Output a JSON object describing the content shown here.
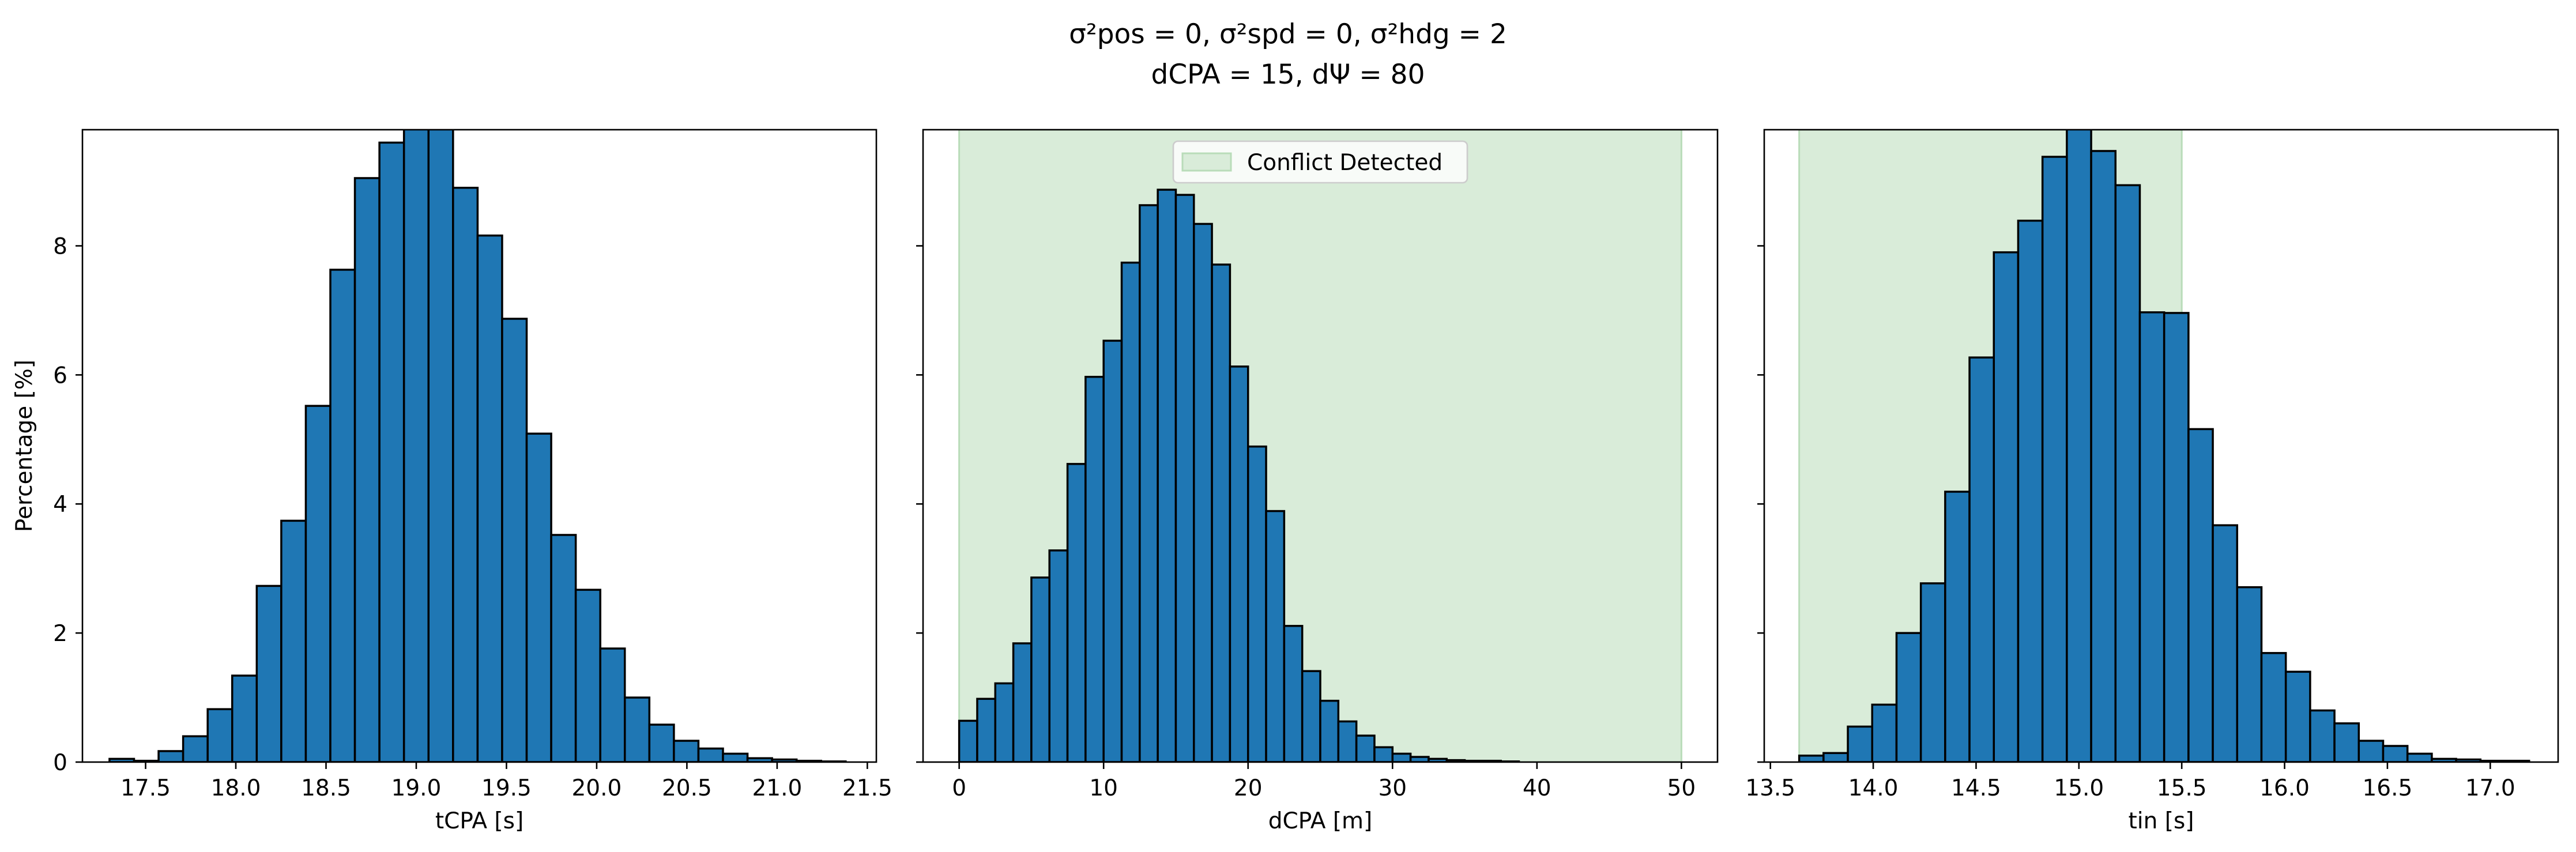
{
  "figure": {
    "title_line1": "σ²pos = 0, σ²spd = 0, σ²hdg = 2",
    "title_line2": "dCPA = 15, dΨ = 80"
  },
  "colors": {
    "bar_fill": "#1f77b4",
    "bar_edge": "#000000",
    "conflict_region": "#d9ecd9",
    "conflict_region_edge": "#b9dcb9"
  },
  "chart_data": [
    {
      "type": "bar",
      "histogram": true,
      "xlabel": "tCPA [s]",
      "ylabel": "Percentage [%]",
      "xlim": [
        17.15,
        21.55
      ],
      "ylim": [
        0,
        9.8
      ],
      "xticks": [
        17.5,
        18.0,
        18.5,
        19.0,
        19.5,
        20.0,
        20.5,
        21.0,
        21.5
      ],
      "xtick_labels": [
        "17.5",
        "18.0",
        "18.5",
        "19.0",
        "19.5",
        "20.0",
        "20.5",
        "21.0",
        "21.5"
      ],
      "yticks": [
        0,
        2,
        4,
        6,
        8
      ],
      "ytick_labels": [
        "0",
        "2",
        "4",
        "6",
        "8"
      ],
      "bin_start": 17.3,
      "bin_width": 0.136,
      "values": [
        0.05,
        0.02,
        0.17,
        0.4,
        0.82,
        1.34,
        2.73,
        3.74,
        5.52,
        7.63,
        9.05,
        9.6,
        9.9,
        9.9,
        8.9,
        8.16,
        6.87,
        5.09,
        3.52,
        2.67,
        1.76,
        1.0,
        0.58,
        0.33,
        0.21,
        0.13,
        0.06,
        0.04,
        0.02,
        0.01
      ]
    },
    {
      "type": "bar",
      "histogram": true,
      "xlabel": "dCPA [m]",
      "ylabel": "",
      "xlim": [
        -2.5,
        52.5
      ],
      "ylim": [
        0,
        9.8
      ],
      "xticks": [
        0,
        10,
        20,
        30,
        40,
        50
      ],
      "xtick_labels": [
        "0",
        "10",
        "20",
        "30",
        "40",
        "50"
      ],
      "yticks": [
        0,
        2,
        4,
        6,
        8
      ],
      "ytick_labels": [
        "",
        "",
        "",
        "",
        ""
      ],
      "bin_start": 0.0,
      "bin_width": 1.25,
      "values": [
        0.64,
        0.98,
        1.22,
        1.84,
        2.86,
        3.28,
        4.62,
        5.97,
        6.53,
        7.74,
        8.63,
        8.87,
        8.79,
        8.34,
        7.71,
        6.13,
        4.89,
        3.89,
        2.11,
        1.41,
        0.95,
        0.63,
        0.41,
        0.23,
        0.13,
        0.08,
        0.05,
        0.03,
        0.02,
        0.02,
        0.01
      ],
      "region": {
        "x0": 0,
        "x1": 50,
        "label": "Conflict Detected"
      },
      "legend_position": "upper center"
    },
    {
      "type": "bar",
      "histogram": true,
      "xlabel": "tin [s]",
      "ylabel": "",
      "xlim": [
        13.47,
        17.33
      ],
      "ylim": [
        0,
        9.8
      ],
      "xticks": [
        13.5,
        14.0,
        14.5,
        15.0,
        15.5,
        16.0,
        16.5,
        17.0
      ],
      "xtick_labels": [
        "13.5",
        "14.0",
        "14.5",
        "15.0",
        "15.5",
        "16.0",
        "16.5",
        "17.0"
      ],
      "yticks": [
        0,
        2,
        4,
        6,
        8
      ],
      "ytick_labels": [
        "",
        "",
        "",
        "",
        ""
      ],
      "bin_start": 13.64,
      "bin_width": 0.1183,
      "values": [
        0.1,
        0.14,
        0.55,
        0.89,
        2.0,
        2.77,
        4.19,
        6.27,
        7.9,
        8.39,
        9.38,
        9.9,
        9.47,
        8.94,
        6.97,
        6.96,
        5.16,
        3.67,
        2.71,
        1.69,
        1.4,
        0.8,
        0.6,
        0.33,
        0.25,
        0.13,
        0.05,
        0.04,
        0.02,
        0.02
      ],
      "region": {
        "x0": 13.64,
        "x1": 15.5
      },
      "region_extends_beyond_ylim": true
    }
  ]
}
